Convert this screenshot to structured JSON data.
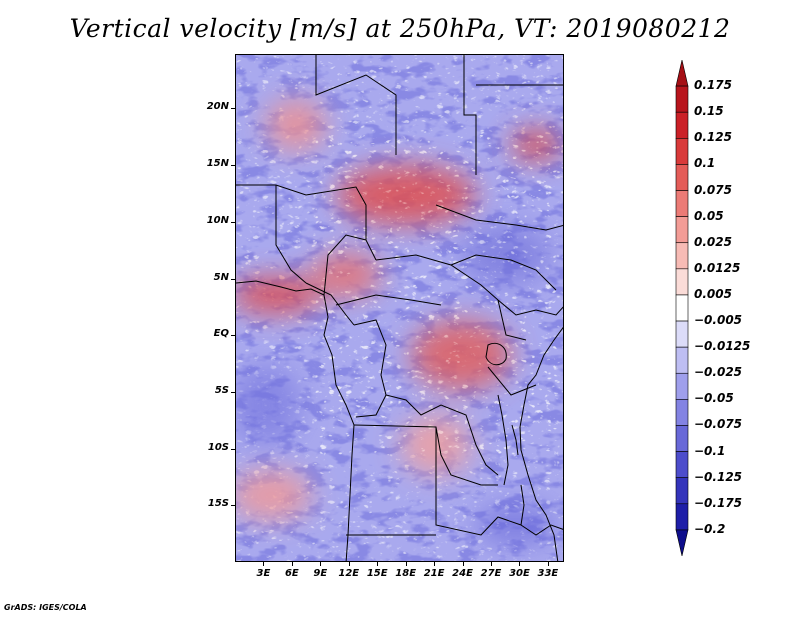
{
  "title": "Vertical velocity [m/s] at 250hPa, VT: 2019080212",
  "footer": "GrADS: IGES/COLA",
  "map": {
    "lat_labels": [
      "20N",
      "15N",
      "10N",
      "5N",
      "EQ",
      "5S",
      "10S",
      "15S"
    ],
    "lat_values": [
      20,
      15,
      10,
      5,
      0,
      -5,
      -10,
      -15
    ],
    "lon_labels": [
      "3E",
      "6E",
      "9E",
      "12E",
      "15E",
      "18E",
      "21E",
      "24E",
      "27E",
      "30E",
      "33E"
    ],
    "lon_values": [
      3,
      6,
      9,
      12,
      15,
      18,
      21,
      24,
      27,
      30,
      33
    ],
    "lon_range": [
      0,
      34.7
    ],
    "lat_range": [
      -20,
      24.8
    ]
  },
  "colorbar": {
    "labels": [
      "0.175",
      "0.15",
      "0.125",
      "0.1",
      "0.075",
      "0.05",
      "0.025",
      "0.0125",
      "0.005",
      "−0.005",
      "−0.0125",
      "−0.025",
      "−0.05",
      "−0.075",
      "−0.1",
      "−0.125",
      "−0.175",
      "−0.2"
    ],
    "colors": [
      "#a50f15",
      "#b8141c",
      "#cb2027",
      "#d93a3a",
      "#e45c58",
      "#ec7b76",
      "#f39c96",
      "#f7bbb5",
      "#fbdcd8",
      "#ffffff",
      "#dcdcf9",
      "#bebef3",
      "#9f9fec",
      "#8383e3",
      "#6868d8",
      "#4d4dcc",
      "#3434bb",
      "#1e1ea8",
      "#0e0e8c"
    ]
  }
}
